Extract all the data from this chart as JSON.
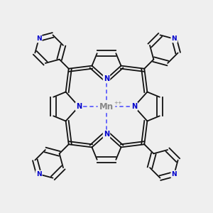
{
  "background_color": "#efefef",
  "mn_color": "#888888",
  "n_color": "#0000cc",
  "bond_color": "#111111",
  "dashed_color": "#4444ff",
  "mn_label": "Mn",
  "mn_charge": "++",
  "n_label": "N",
  "pyridine_n_color": "#0000cc",
  "fig_width": 3.0,
  "fig_height": 3.0,
  "dpi": 100
}
